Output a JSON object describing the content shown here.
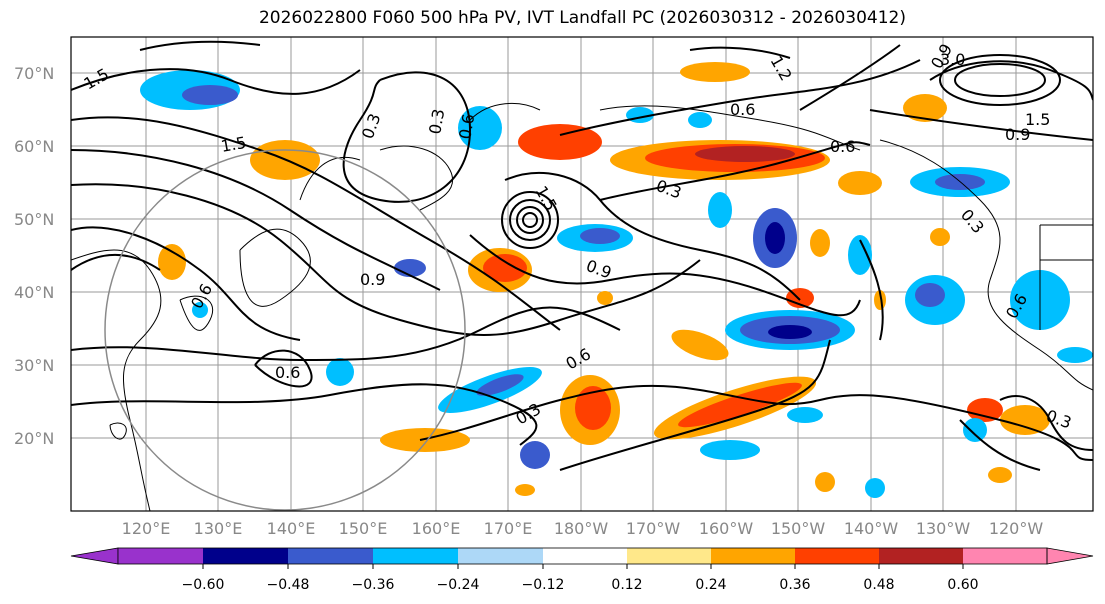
{
  "title": "2026022800 F060 500 hPa PV, IVT Landfall PC (2026030312 - 2026030412)",
  "latitude_labels": [
    "70°N",
    "60°N",
    "50°N",
    "40°N",
    "30°N",
    "20°N"
  ],
  "longitude_labels": [
    "120°E",
    "130°E",
    "140°E",
    "150°E",
    "160°E",
    "170°E",
    "180°W",
    "170°W",
    "160°W",
    "150°W",
    "140°W",
    "130°W",
    "120°W"
  ],
  "contour_labels": [
    "1.5",
    "1.5",
    "0.3",
    "0.6",
    "1.5",
    "0.9",
    "0.3",
    "0.9",
    "0.6",
    "0.6",
    "0.3",
    "0.6",
    "0.6",
    "0.6",
    "0.3",
    "0.9",
    "3.0",
    "1.5",
    "0.9",
    "0.3",
    "1.2",
    "0.6",
    "0.3"
  ],
  "colorbar": {
    "colors": [
      "#9932cc",
      "#00008b",
      "#3a5bcd",
      "#00bfff",
      "#add8f7",
      "#ffffff",
      "#ffe88a",
      "#ffa500",
      "#ff4000",
      "#b22222",
      "#ff85b0"
    ],
    "tick_labels": [
      "−0.60",
      "−0.48",
      "−0.36",
      "−0.24",
      "−0.12",
      "0.12",
      "0.24",
      "0.36",
      "0.48",
      "0.60"
    ]
  }
}
